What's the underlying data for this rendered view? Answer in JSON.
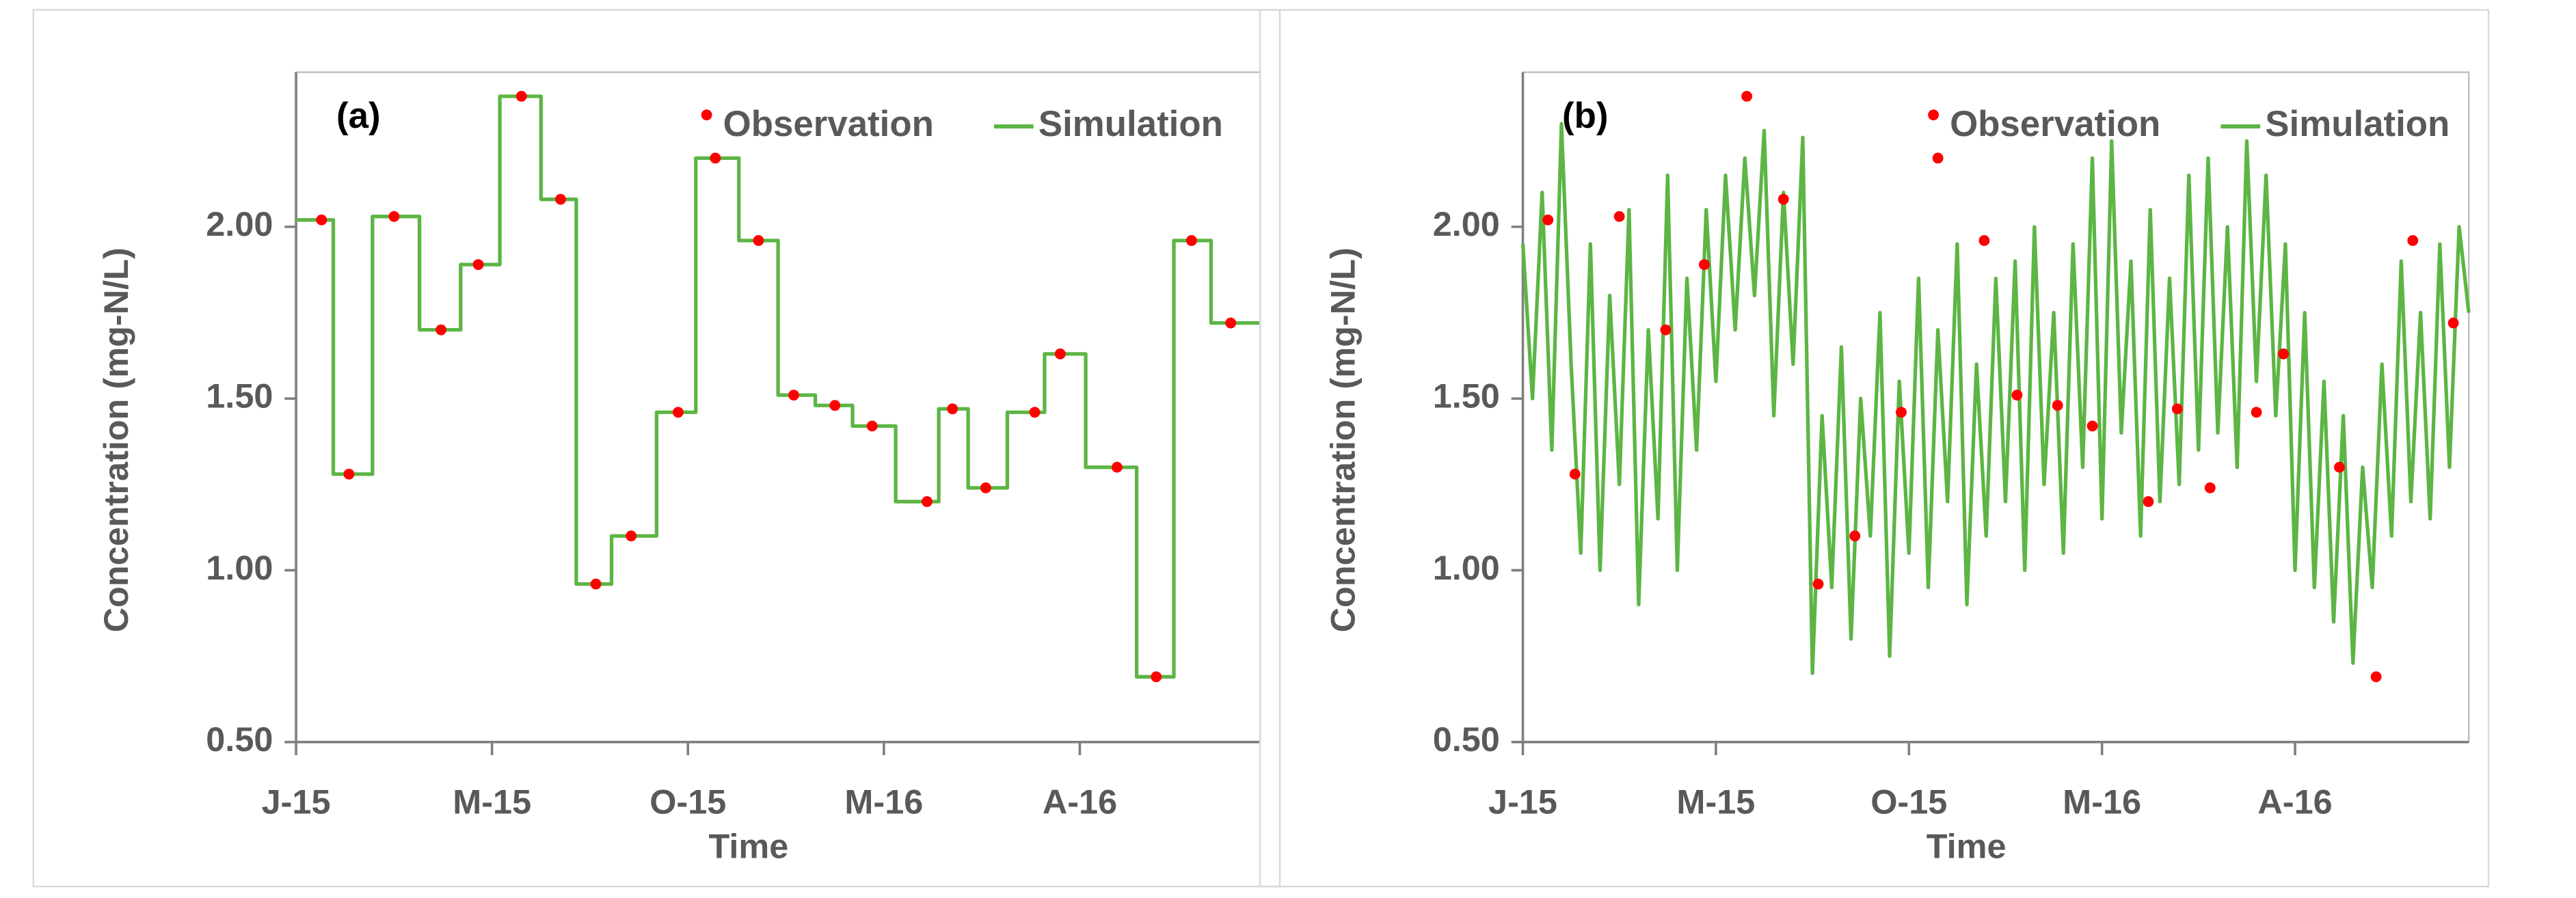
{
  "chart_data": [
    {
      "type": "line",
      "title": "(a)",
      "xlabel": "Time",
      "ylabel": "Concentration (mg-N/L)",
      "xlim": [
        0,
        4.92
      ],
      "xticks": [
        {
          "value": 0,
          "label": "J-15"
        },
        {
          "value": 1,
          "label": "M-15"
        },
        {
          "value": 2,
          "label": "O-15"
        },
        {
          "value": 3,
          "label": "M-16"
        },
        {
          "value": 4,
          "label": "A-16"
        }
      ],
      "ylim": [
        0.5,
        2.45
      ],
      "yticks": [
        {
          "value": 0.5,
          "label": "0.50"
        },
        {
          "value": 1,
          "label": "1.00"
        },
        {
          "value": 1.5,
          "label": "1.50"
        },
        {
          "value": 2,
          "label": "2.00"
        }
      ],
      "legend": "top right",
      "series": [
        {
          "name": "Observation",
          "type": "scatter",
          "color": "#ff0000",
          "x": [
            0.13,
            0.27,
            0.5,
            0.74,
            0.93,
            1.15,
            1.35,
            1.53,
            1.71,
            1.95,
            2.14,
            2.36,
            2.54,
            2.75,
            2.94,
            3.22,
            3.35,
            3.52,
            3.77,
            3.9,
            4.19,
            4.39,
            4.57,
            4.77
          ],
          "values": [
            2.02,
            1.28,
            2.03,
            1.7,
            1.89,
            2.38,
            2.08,
            0.96,
            1.1,
            1.46,
            2.2,
            1.96,
            1.51,
            1.48,
            1.42,
            1.2,
            1.47,
            1.24,
            1.46,
            1.63,
            1.3,
            0.69,
            1.96,
            1.72
          ]
        },
        {
          "name": "Simulation",
          "type": "line",
          "color": "#5cb544",
          "x": [
            0,
            0.19,
            0.19,
            0.39,
            0.39,
            0.63,
            0.63,
            0.84,
            0.84,
            1.04,
            1.04,
            1.25,
            1.25,
            1.43,
            1.43,
            1.61,
            1.61,
            1.84,
            1.84,
            2.04,
            2.04,
            2.26,
            2.26,
            2.46,
            2.46,
            2.65,
            2.65,
            2.84,
            2.84,
            3.06,
            3.06,
            3.28,
            3.28,
            3.43,
            3.43,
            3.63,
            3.63,
            3.82,
            3.82,
            4.03,
            4.03,
            4.29,
            4.29,
            4.48,
            4.48,
            4.67,
            4.67,
            4.92
          ],
          "values": [
            2.02,
            2.02,
            1.28,
            1.28,
            2.03,
            2.03,
            1.7,
            1.7,
            1.89,
            1.89,
            2.38,
            2.38,
            2.08,
            2.08,
            0.96,
            0.96,
            1.1,
            1.1,
            1.46,
            1.46,
            2.2,
            2.2,
            1.96,
            1.96,
            1.51,
            1.51,
            1.48,
            1.48,
            1.42,
            1.42,
            1.2,
            1.2,
            1.47,
            1.47,
            1.24,
            1.24,
            1.46,
            1.46,
            1.63,
            1.63,
            1.3,
            1.3,
            0.69,
            0.69,
            1.96,
            1.96,
            1.72,
            1.72
          ]
        }
      ]
    },
    {
      "type": "line",
      "title": "(b)",
      "xlabel": "Time",
      "ylabel": "Concentration (mg-N/L)",
      "xlim": [
        0,
        4.9
      ],
      "xticks": [
        {
          "value": 0,
          "label": "J-15"
        },
        {
          "value": 1,
          "label": "M-15"
        },
        {
          "value": 2,
          "label": "O-15"
        },
        {
          "value": 3,
          "label": "M-16"
        },
        {
          "value": 4,
          "label": "A-16"
        }
      ],
      "ylim": [
        0.5,
        2.45
      ],
      "yticks": [
        {
          "value": 0.5,
          "label": "0.50"
        },
        {
          "value": 1,
          "label": "1.00"
        },
        {
          "value": 1.5,
          "label": "1.50"
        },
        {
          "value": 2,
          "label": "2.00"
        }
      ],
      "legend": "top right",
      "series": [
        {
          "name": "Observation",
          "type": "scatter",
          "color": "#ff0000",
          "x": [
            0.13,
            0.27,
            0.5,
            0.74,
            0.94,
            1.16,
            1.35,
            1.53,
            1.72,
            1.96,
            2.15,
            2.39,
            2.56,
            2.77,
            2.95,
            3.24,
            3.39,
            3.56,
            3.8,
            3.94,
            4.23,
            4.42,
            4.61,
            4.82
          ],
          "values": [
            2.02,
            1.28,
            2.03,
            1.7,
            1.89,
            2.38,
            2.08,
            0.96,
            1.1,
            1.46,
            2.2,
            1.96,
            1.51,
            1.48,
            1.42,
            1.2,
            1.47,
            1.24,
            1.46,
            1.63,
            1.3,
            0.69,
            1.96,
            1.72
          ]
        },
        {
          "name": "Simulation",
          "type": "line",
          "color": "#5cb544",
          "x": [
            0,
            0.05,
            0.1,
            0.15,
            0.2,
            0.25,
            0.3,
            0.35,
            0.4,
            0.45,
            0.5,
            0.55,
            0.6,
            0.65,
            0.7,
            0.75,
            0.8,
            0.85,
            0.9,
            0.95,
            1,
            1.05,
            1.1,
            1.15,
            1.2,
            1.25,
            1.3,
            1.35,
            1.4,
            1.45,
            1.5,
            1.55,
            1.6,
            1.65,
            1.7,
            1.75,
            1.8,
            1.85,
            1.9,
            1.95,
            2,
            2.05,
            2.1,
            2.15,
            2.2,
            2.25,
            2.3,
            2.35,
            2.4,
            2.45,
            2.5,
            2.55,
            2.6,
            2.65,
            2.7,
            2.75,
            2.8,
            2.85,
            2.9,
            2.95,
            3,
            3.05,
            3.1,
            3.15,
            3.2,
            3.25,
            3.3,
            3.35,
            3.4,
            3.45,
            3.5,
            3.55,
            3.6,
            3.65,
            3.7,
            3.75,
            3.8,
            3.85,
            3.9,
            3.95,
            4,
            4.05,
            4.1,
            4.15,
            4.2,
            4.25,
            4.3,
            4.35,
            4.4,
            4.45,
            4.5,
            4.55,
            4.6,
            4.65,
            4.7,
            4.75,
            4.8,
            4.85,
            4.9
          ],
          "values": [
            1.95,
            1.5,
            2.1,
            1.35,
            2.3,
            1.6,
            1.05,
            1.95,
            1.0,
            1.8,
            1.25,
            2.05,
            0.9,
            1.7,
            1.15,
            2.15,
            1.0,
            1.85,
            1.35,
            2.05,
            1.55,
            2.15,
            1.7,
            2.2,
            1.8,
            2.28,
            1.45,
            2.1,
            1.6,
            2.26,
            0.7,
            1.45,
            0.95,
            1.65,
            0.8,
            1.5,
            1.1,
            1.75,
            0.75,
            1.55,
            1.05,
            1.85,
            0.95,
            1.7,
            1.2,
            1.95,
            0.9,
            1.6,
            1.1,
            1.85,
            1.2,
            1.9,
            1.0,
            2.0,
            1.25,
            1.75,
            1.05,
            1.95,
            1.3,
            2.2,
            1.15,
            2.25,
            1.4,
            1.9,
            1.1,
            2.05,
            1.2,
            1.85,
            1.25,
            2.15,
            1.35,
            2.2,
            1.4,
            2.0,
            1.3,
            2.25,
            1.55,
            2.15,
            1.45,
            1.95,
            1.0,
            1.75,
            0.95,
            1.55,
            0.85,
            1.45,
            0.73,
            1.3,
            0.95,
            1.6,
            1.1,
            1.9,
            1.2,
            1.75,
            1.15,
            1.95,
            1.3,
            2.0,
            1.75
          ]
        }
      ]
    }
  ]
}
